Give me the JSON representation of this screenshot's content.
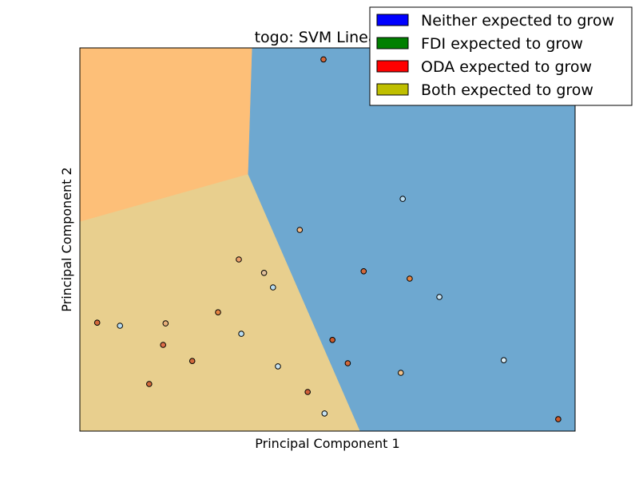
{
  "chart_data": {
    "type": "scatter",
    "title": "togo: SVM Linear-O",
    "xlabel": "Principal Component 1",
    "ylabel": "Principal Component 2",
    "xlim": [
      0,
      100
    ],
    "ylim": [
      0,
      100
    ],
    "grid": false,
    "legend_position": "top-right",
    "legend": [
      {
        "label": "Neither expected to grow",
        "color": "#0000ff"
      },
      {
        "label": "FDI expected to grow",
        "color": "#008000"
      },
      {
        "label": "ODA expected to grow",
        "color": "#ff0000"
      },
      {
        "label": "Both expected to grow",
        "color": "#bfbf00"
      }
    ],
    "regions": [
      {
        "name": "top-left-region",
        "color": "#fdbf78",
        "polygon": [
          [
            0,
            100
          ],
          [
            34.8,
            100
          ],
          [
            34,
            67
          ],
          [
            0,
            54.6
          ]
        ]
      },
      {
        "name": "bottom-left-region",
        "color": "#e8cf8e",
        "polygon": [
          [
            0,
            54.6
          ],
          [
            34,
            67
          ],
          [
            56.6,
            0
          ],
          [
            0,
            0
          ]
        ]
      },
      {
        "name": "right-region",
        "color": "#6ea8d0",
        "polygon": [
          [
            34.8,
            100
          ],
          [
            100,
            100
          ],
          [
            100,
            0
          ],
          [
            56.6,
            0
          ],
          [
            34,
            67
          ]
        ]
      }
    ],
    "points": [
      {
        "x": 49.2,
        "y": 97,
        "color": "#d2693c"
      },
      {
        "x": 65.2,
        "y": 60.6,
        "color": "#b9ddf2"
      },
      {
        "x": 44.4,
        "y": 52.5,
        "color": "#f0b886"
      },
      {
        "x": 32.1,
        "y": 44.8,
        "color": "#eda06c"
      },
      {
        "x": 37.2,
        "y": 41.3,
        "color": "#e2c09a"
      },
      {
        "x": 39.0,
        "y": 37.5,
        "color": "#b9ddf2"
      },
      {
        "x": 57.3,
        "y": 41.7,
        "color": "#d2693c"
      },
      {
        "x": 66.6,
        "y": 39.8,
        "color": "#e68543"
      },
      {
        "x": 72.6,
        "y": 35.0,
        "color": "#c9e4f3"
      },
      {
        "x": 3.5,
        "y": 28.3,
        "color": "#d2693c"
      },
      {
        "x": 8.1,
        "y": 27.5,
        "color": "#b9ddf2"
      },
      {
        "x": 17.3,
        "y": 28.1,
        "color": "#e8b07a"
      },
      {
        "x": 27.9,
        "y": 31.0,
        "color": "#e68543"
      },
      {
        "x": 16.8,
        "y": 22.5,
        "color": "#de6e49"
      },
      {
        "x": 32.6,
        "y": 25.4,
        "color": "#b9ddf2"
      },
      {
        "x": 51.0,
        "y": 23.8,
        "color": "#cd5b2c"
      },
      {
        "x": 22.7,
        "y": 18.3,
        "color": "#d2693c"
      },
      {
        "x": 54.1,
        "y": 17.7,
        "color": "#d2693c"
      },
      {
        "x": 40.0,
        "y": 16.9,
        "color": "#c7e2f1"
      },
      {
        "x": 64.8,
        "y": 15.2,
        "color": "#f1c28c"
      },
      {
        "x": 85.6,
        "y": 18.5,
        "color": "#dbeef7"
      },
      {
        "x": 14.0,
        "y": 12.3,
        "color": "#d2693c"
      },
      {
        "x": 46.0,
        "y": 10.2,
        "color": "#d0603a"
      },
      {
        "x": 49.4,
        "y": 4.6,
        "color": "#c7e2f1"
      },
      {
        "x": 96.6,
        "y": 3.1,
        "color": "#cd5b2c"
      }
    ]
  }
}
